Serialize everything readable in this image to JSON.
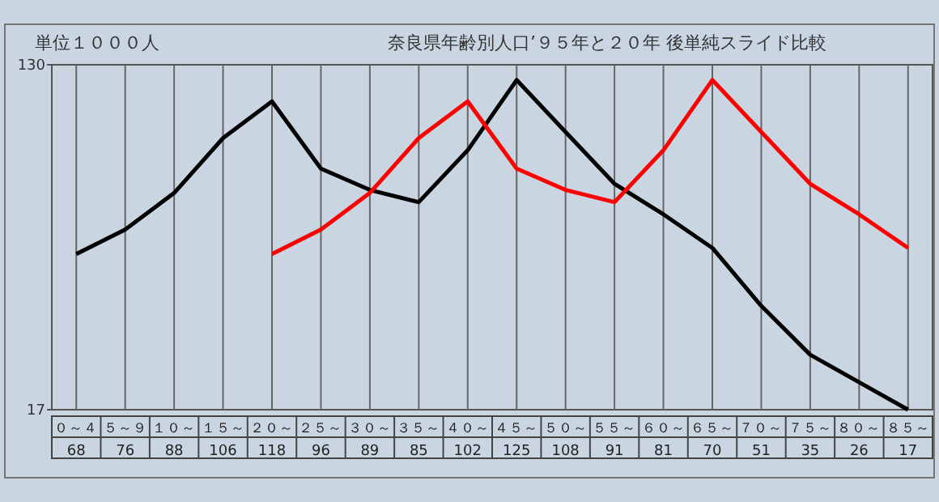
{
  "chart_data": {
    "type": "line",
    "title": "奈良県年齢別人口’９５年と２０年 後単純スライド比較",
    "annotations": [
      "単位１０００人"
    ],
    "categories": [
      "０～４",
      "５～９",
      "１０～",
      "１５～",
      "２０～",
      "２５～",
      "３０～",
      "３５～",
      "４０～",
      "４５～",
      "５０～",
      "５５～",
      "６０～",
      "６５～",
      "７０～",
      "７５～",
      "８０～",
      "８５～"
    ],
    "series": [
      {
        "color": "#000000",
        "values": [
          68,
          76,
          88,
          106,
          118,
          96,
          89,
          85,
          102,
          125,
          108,
          91,
          81,
          70,
          51,
          35,
          26,
          17
        ],
        "value_labels": [
          "68",
          "76",
          "88",
          "106",
          "118",
          "96",
          "89",
          "85",
          "102",
          "125",
          "108",
          "91",
          "81",
          "70",
          "51",
          "35",
          "26",
          "17"
        ]
      },
      {
        "color": "#ff0000",
        "values": [
          null,
          null,
          null,
          null,
          68,
          76,
          88,
          106,
          118,
          96,
          89,
          85,
          102,
          125,
          108,
          91,
          81,
          70
        ]
      }
    ],
    "ylim": [
      17,
      130
    ],
    "yticks": [
      17,
      130
    ],
    "grid": "x"
  }
}
